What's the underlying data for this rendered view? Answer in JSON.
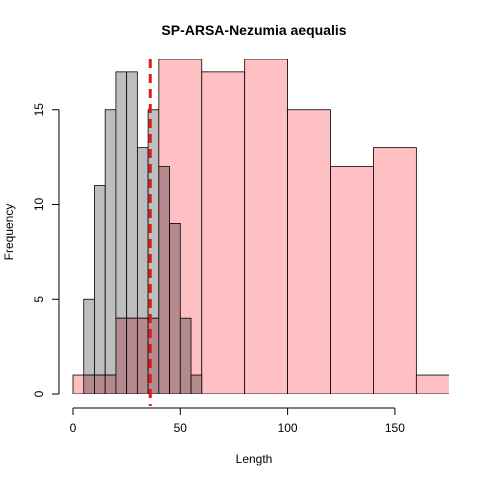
{
  "chart_data": {
    "type": "bar",
    "title": "SP-ARSA-Nezumia aequalis",
    "xlabel": "Length",
    "ylabel": "Frequency",
    "xlim": [
      0,
      175
    ],
    "ylim": [
      0,
      17
    ],
    "x_ticks": [
      "0",
      "50",
      "100",
      "150"
    ],
    "y_ticks": [
      "0",
      "5",
      "10",
      "15"
    ],
    "series": [
      {
        "color": "#bebebe",
        "bins": [
          {
            "x0": 5,
            "x1": 10,
            "value": 5
          },
          {
            "x0": 10,
            "x1": 15,
            "value": 11
          },
          {
            "x0": 15,
            "x1": 20,
            "value": 15
          },
          {
            "x0": 20,
            "x1": 25,
            "value": 17
          },
          {
            "x0": 25,
            "x1": 30,
            "value": 17
          },
          {
            "x0": 30,
            "x1": 35,
            "value": 13
          },
          {
            "x0": 35,
            "x1": 40,
            "value": 15
          }
        ]
      },
      {
        "color": "#ffc0c4",
        "bins": [
          {
            "x0": 0,
            "x1": 20,
            "value": 1
          },
          {
            "x0": 20,
            "x1": 40,
            "value": 4
          },
          {
            "x0": 40,
            "x1": 60,
            "value": 18
          },
          {
            "x0": 60,
            "x1": 80,
            "value": 17
          },
          {
            "x0": 80,
            "x1": 100,
            "value": 18
          },
          {
            "x0": 100,
            "x1": 120,
            "value": 15
          },
          {
            "x0": 120,
            "x1": 140,
            "value": 12
          },
          {
            "x0": 140,
            "x1": 160,
            "value": 13
          },
          {
            "x0": 160,
            "x1": 180,
            "value": 1
          }
        ]
      },
      {
        "color": "#b58a8e",
        "bins": [
          {
            "x0": 5,
            "x1": 10,
            "value": 1
          },
          {
            "x0": 10,
            "x1": 15,
            "value": 1
          },
          {
            "x0": 15,
            "x1": 20,
            "value": 1
          },
          {
            "x0": 20,
            "x1": 25,
            "value": 4
          },
          {
            "x0": 25,
            "x1": 30,
            "value": 4
          },
          {
            "x0": 30,
            "x1": 35,
            "value": 4
          },
          {
            "x0": 35,
            "x1": 40,
            "value": 4
          },
          {
            "x0": 40,
            "x1": 45,
            "value": 12
          },
          {
            "x0": 45,
            "x1": 50,
            "value": 9
          },
          {
            "x0": 50,
            "x1": 55,
            "value": 4
          },
          {
            "x0": 55,
            "x1": 60,
            "value": 1
          }
        ]
      }
    ],
    "reference_line": {
      "x": 36,
      "color": "#e31a1c",
      "style": "dashed"
    },
    "grid": false,
    "legend": "none"
  }
}
